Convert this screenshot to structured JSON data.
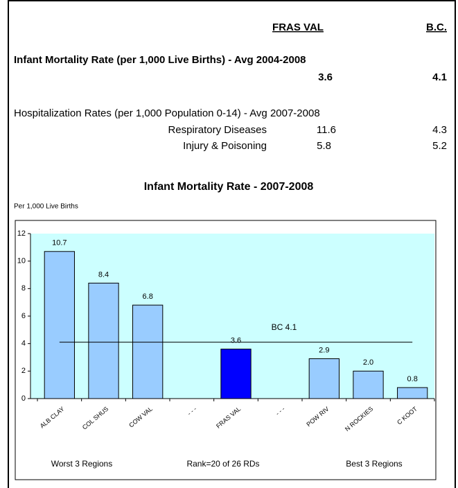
{
  "header": {
    "col1": "FRAS VAL",
    "col2": "B.C."
  },
  "rows": [
    {
      "label": "Infant Mortality Rate (per 1,000 Live Births) - Avg 2004-2008",
      "fras": "3.6",
      "bc": "4.1"
    },
    {
      "label": "Hospitalization Rates (per 1,000 Population 0-14) - Avg 2007-2008"
    },
    {
      "label": "Respiratory Diseases",
      "fras": "11.6",
      "bc": "4.3"
    },
    {
      "label": "Injury & Poisoning",
      "fras": "5.8",
      "bc": "5.2"
    }
  ],
  "chart_data": {
    "type": "bar",
    "title": "Infant Mortality Rate - 2007-2008",
    "ylabel": "Per 1,000 Live Births",
    "categories": [
      "ALB CLAY",
      "COL SHUS",
      "COW VAL",
      "- - -",
      "FRAS VAL",
      "- - -",
      "POW RIV",
      "N ROCKIES",
      "C KOOT"
    ],
    "values": [
      10.7,
      8.4,
      6.8,
      null,
      3.6,
      null,
      2.9,
      2,
      0.8
    ],
    "value_labels": [
      "10.7",
      "8.4",
      "6.8",
      null,
      "3.6",
      null,
      "2.9",
      "2.0",
      "0.8"
    ],
    "colors": [
      "#99ccff",
      "#99ccff",
      "#99ccff",
      null,
      "#0000ff",
      null,
      "#99ccff",
      "#99ccff",
      "#99ccff"
    ],
    "ylim": [
      0,
      12
    ],
    "yticks": [
      0,
      2,
      4,
      6,
      8,
      10,
      12
    ],
    "reference_line": {
      "value": 4.1,
      "label": "BC 4.1"
    },
    "footer": [
      "Worst 3 Regions",
      "Rank=20 of 26 RDs",
      "Best 3 Regions"
    ],
    "plot_background": "#ccffff"
  }
}
